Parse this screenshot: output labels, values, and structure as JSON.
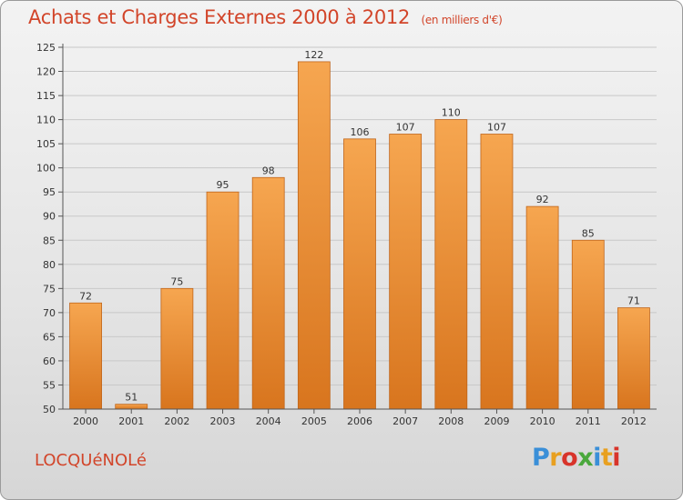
{
  "title": "Achats et Charges Externes 2000 à 2012",
  "subtitle": "(en milliers d'€)",
  "commune": "LOCQUéNOLé",
  "logo": {
    "text": "Proxiti",
    "letter_colors": [
      "#3a8fd8",
      "#e8a020",
      "#d8342a",
      "#4aa83c",
      "#3a8fd8",
      "#e8a020",
      "#d8342a"
    ]
  },
  "colors": {
    "bar_light": "#f6a650",
    "bar_dark": "#d8751e",
    "bar_edge": "#c0651a",
    "title": "#d2452a",
    "grid": "#c8c8c8"
  },
  "chart_data": {
    "type": "bar",
    "categories": [
      "2000",
      "2001",
      "2002",
      "2003",
      "2004",
      "2005",
      "2006",
      "2007",
      "2008",
      "2009",
      "2010",
      "2011",
      "2012"
    ],
    "values": [
      72,
      51,
      75,
      95,
      98,
      122,
      106,
      107,
      110,
      107,
      92,
      85,
      71
    ],
    "ylim": [
      50,
      125
    ],
    "yticks": [
      50,
      55,
      60,
      65,
      70,
      75,
      80,
      85,
      90,
      95,
      100,
      105,
      110,
      115,
      120,
      125
    ],
    "grid": true,
    "xlabel": "",
    "ylabel": ""
  }
}
